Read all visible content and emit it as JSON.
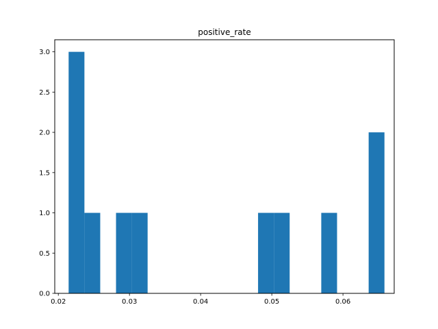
{
  "chart_data": {
    "type": "bar",
    "title": "positive_rate",
    "xlabel": "",
    "ylabel": "",
    "xlim": [
      0.0195,
      0.0672
    ],
    "ylim": [
      0,
      3.15
    ],
    "grid": false,
    "bar_color": "#1f77b4",
    "bins": [
      {
        "x0": 0.02145,
        "x1": 0.02367,
        "count": 3
      },
      {
        "x0": 0.02367,
        "x1": 0.02589,
        "count": 1
      },
      {
        "x0": 0.02811,
        "x1": 0.03033,
        "count": 1
      },
      {
        "x0": 0.03033,
        "x1": 0.03255,
        "count": 1
      },
      {
        "x0": 0.04807,
        "x1": 0.05029,
        "count": 1
      },
      {
        "x0": 0.05029,
        "x1": 0.05251,
        "count": 1
      },
      {
        "x0": 0.05695,
        "x1": 0.05917,
        "count": 1
      },
      {
        "x0": 0.06361,
        "x1": 0.06583,
        "count": 2
      }
    ],
    "x_ticks": [
      {
        "value": 0.02,
        "label": "0.02"
      },
      {
        "value": 0.03,
        "label": "0.03"
      },
      {
        "value": 0.04,
        "label": "0.04"
      },
      {
        "value": 0.05,
        "label": "0.05"
      },
      {
        "value": 0.06,
        "label": "0.06"
      }
    ],
    "y_ticks": [
      {
        "value": 0.0,
        "label": "0.0"
      },
      {
        "value": 0.5,
        "label": "0.5"
      },
      {
        "value": 1.0,
        "label": "1.0"
      },
      {
        "value": 1.5,
        "label": "1.5"
      },
      {
        "value": 2.0,
        "label": "2.0"
      },
      {
        "value": 2.5,
        "label": "2.5"
      },
      {
        "value": 3.0,
        "label": "3.0"
      }
    ]
  }
}
